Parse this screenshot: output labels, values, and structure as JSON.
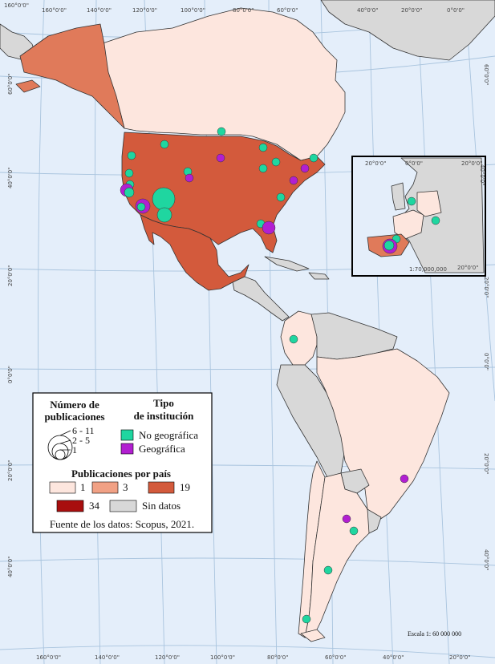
{
  "legend": {
    "size_title_1": "Número de",
    "size_title_2": "publicaciones",
    "size_labels": [
      "6 - 11",
      "2 - 5",
      "1"
    ],
    "type_title_1": "Tipo",
    "type_title_2": "de institución",
    "type_items": [
      {
        "label": "No geográfica",
        "color": "#1fd6a0"
      },
      {
        "label": "Geográfica",
        "color": "#b21fd1"
      }
    ],
    "country_title": "Publicaciones por país",
    "country_items": [
      {
        "label": "1",
        "color": "#fde6de"
      },
      {
        "label": "3",
        "color": "#f1a185"
      },
      {
        "label": "19",
        "color": "#d35a3c"
      },
      {
        "label": "34",
        "color": "#a80e0e"
      },
      {
        "label": "Sin datos",
        "color": "#d8d8d8"
      }
    ],
    "source": "Fuente de los datos: Scopus, 2021."
  },
  "scale_text": "Escala 1: 60 000 000",
  "inset_scale_text": "1:70,000,000",
  "tick_labels": {
    "top": [
      "160°0'0\"",
      "160°0'0\"",
      "140°0'0\"",
      "120°0'0\"",
      "100°0'0\"",
      "80°0'0\"",
      "60°0'0\"",
      "40°0'0\"",
      "20°0'0\"",
      "0°0'0\""
    ],
    "bottom": [
      "160°0'0\"",
      "140°0'0\"",
      "120°0'0\"",
      "100°0'0\"",
      "80°0'0\"",
      "60°0'0\"",
      "40°0'0\"",
      "20°0'0\""
    ],
    "left": [
      "60°0'0\"",
      "40°0'0\"",
      "20°0'0\"",
      "0°0'0\"",
      "20°0'0\"",
      "40°0'0\""
    ],
    "right": [
      "60°0'0\"",
      "40°0'0\"",
      "20°0'0\"",
      "0°0'0\"",
      "20°0'0\"",
      "40°0'0\""
    ],
    "inset_top": [
      "20°0'0\"",
      "0°0'0\"",
      "20°0'0\""
    ],
    "inset_bottom": [
      "20°0'0\""
    ],
    "inset_right": [
      "40°0'0\""
    ]
  },
  "colors": {
    "ocean": "#e4eefa",
    "no_data": "#d8d8d8",
    "one": "#fde6de",
    "three": "#f1a185",
    "nineteen": "#d35a3c",
    "thirtyfour": "#a80e0e",
    "no_geo": "#1fd6a0",
    "geo": "#b21fd1"
  }
}
